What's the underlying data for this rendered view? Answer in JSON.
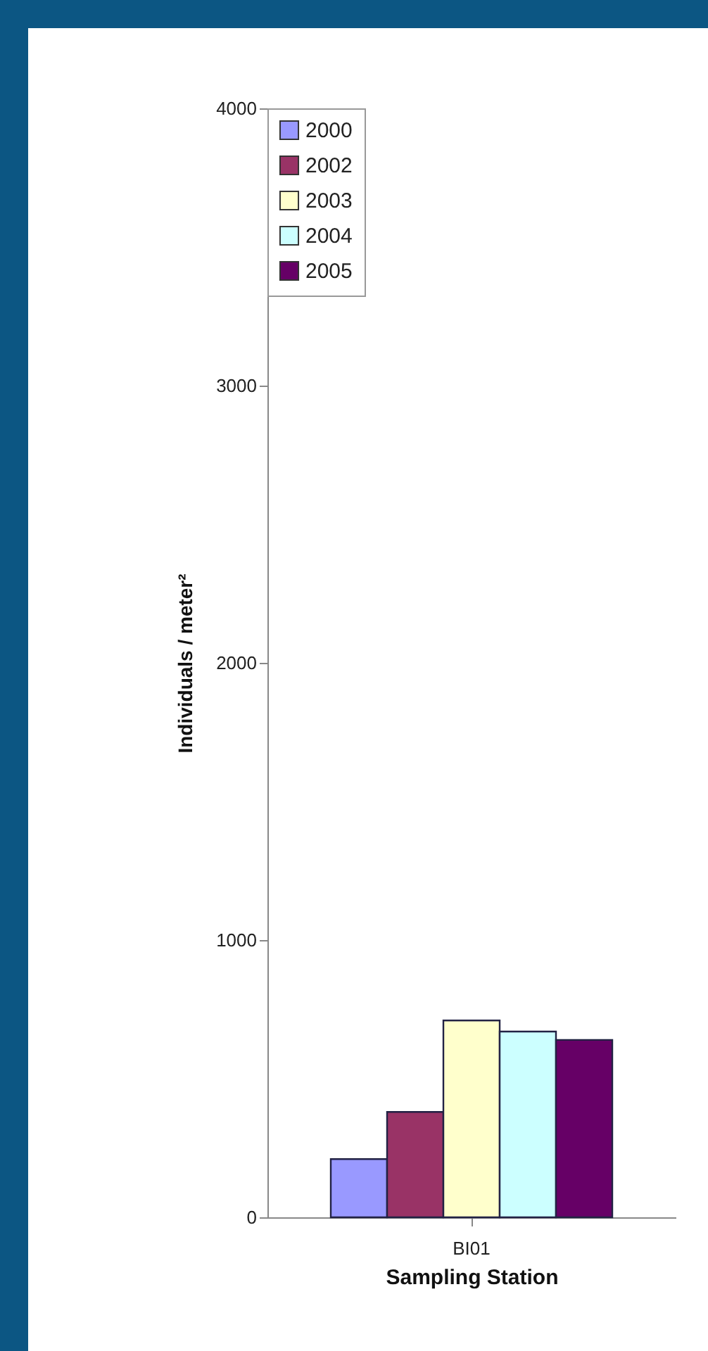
{
  "chart_data": {
    "type": "bar",
    "xlabel": "Sampling Station",
    "ylabel": "Individuals / meter²",
    "categories": [
      "BI01"
    ],
    "series": [
      {
        "name": "2000",
        "color": "#9999ff",
        "values": [
          210
        ]
      },
      {
        "name": "2002",
        "color": "#993366",
        "values": [
          380
        ]
      },
      {
        "name": "2003",
        "color": "#ffffcc",
        "values": [
          710
        ]
      },
      {
        "name": "2004",
        "color": "#ccffff",
        "values": [
          670
        ]
      },
      {
        "name": "2005",
        "color": "#660066",
        "values": [
          640
        ]
      }
    ],
    "ylim": [
      0,
      4000
    ],
    "yticks": [
      0,
      1000,
      2000,
      3000,
      4000
    ],
    "grid": false,
    "legend": "top left"
  }
}
